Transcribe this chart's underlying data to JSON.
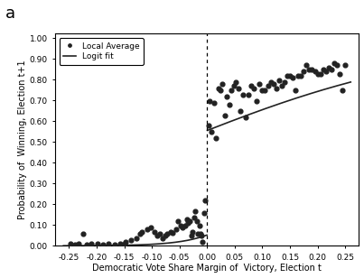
{
  "title_label": "a",
  "xlabel": "Democratic Vote Share Margin of  Victory, Election t",
  "ylabel": "Probability of  Winning, Election t+1",
  "xlim": [
    -0.275,
    0.275
  ],
  "ylim": [
    0.0,
    1.02
  ],
  "yticks": [
    0.0,
    0.1,
    0.2,
    0.3,
    0.4,
    0.5,
    0.6,
    0.7,
    0.8,
    0.9,
    1.0
  ],
  "xticks": [
    -0.25,
    -0.2,
    -0.15,
    -0.1,
    -0.05,
    0.0,
    0.05,
    0.1,
    0.15,
    0.2,
    0.25
  ],
  "vline_x": 0.0,
  "background_color": "#ffffff",
  "scatter_color": "#222222",
  "line_color": "#222222",
  "scatter_size": 12,
  "logit_params_left": {
    "beta0": -2.9,
    "beta1": 20.0
  },
  "logit_params_right": {
    "beta0": 0.22,
    "beta1": 4.2
  },
  "scatter_left_x": [
    -0.248,
    -0.24,
    -0.232,
    -0.218,
    -0.21,
    -0.225,
    -0.198,
    -0.188,
    -0.178,
    -0.168,
    -0.158,
    -0.15,
    -0.148,
    -0.138,
    -0.128,
    -0.122,
    -0.118,
    -0.108,
    -0.102,
    -0.095,
    -0.09,
    -0.086,
    -0.08,
    -0.076,
    -0.072,
    -0.066,
    -0.062,
    -0.056,
    -0.052,
    -0.048,
    -0.044,
    -0.04,
    -0.037,
    -0.034,
    -0.031,
    -0.028,
    -0.026,
    -0.024,
    -0.021,
    -0.019,
    -0.017,
    -0.014,
    -0.012,
    -0.01,
    -0.008,
    -0.005,
    -0.003
  ],
  "scatter_left_y": [
    0.01,
    0.005,
    0.01,
    0.005,
    0.01,
    0.06,
    0.01,
    0.005,
    0.01,
    0.005,
    0.008,
    0.01,
    0.02,
    0.028,
    0.038,
    0.058,
    0.068,
    0.078,
    0.088,
    0.068,
    0.048,
    0.058,
    0.038,
    0.048,
    0.058,
    0.068,
    0.063,
    0.078,
    0.118,
    0.098,
    0.088,
    0.098,
    0.128,
    0.108,
    0.118,
    0.048,
    0.068,
    0.138,
    0.168,
    0.118,
    0.058,
    0.098,
    0.058,
    0.048,
    0.018,
    0.158,
    0.218
  ],
  "scatter_right_x": [
    0.002,
    0.005,
    0.008,
    0.012,
    0.016,
    0.02,
    0.024,
    0.028,
    0.032,
    0.036,
    0.04,
    0.044,
    0.048,
    0.052,
    0.056,
    0.06,
    0.065,
    0.07,
    0.075,
    0.08,
    0.085,
    0.09,
    0.095,
    0.1,
    0.105,
    0.11,
    0.115,
    0.12,
    0.125,
    0.13,
    0.135,
    0.14,
    0.145,
    0.15,
    0.155,
    0.16,
    0.165,
    0.17,
    0.175,
    0.18,
    0.185,
    0.19,
    0.195,
    0.2,
    0.205,
    0.21,
    0.215,
    0.22,
    0.225,
    0.23,
    0.235,
    0.24,
    0.245,
    0.25
  ],
  "scatter_right_y": [
    0.58,
    0.695,
    0.548,
    0.688,
    0.52,
    0.758,
    0.748,
    0.778,
    0.628,
    0.718,
    0.678,
    0.748,
    0.768,
    0.788,
    0.758,
    0.648,
    0.728,
    0.618,
    0.728,
    0.768,
    0.758,
    0.698,
    0.778,
    0.748,
    0.748,
    0.768,
    0.788,
    0.778,
    0.758,
    0.798,
    0.768,
    0.788,
    0.818,
    0.818,
    0.808,
    0.748,
    0.818,
    0.818,
    0.838,
    0.868,
    0.848,
    0.848,
    0.838,
    0.828,
    0.828,
    0.848,
    0.838,
    0.858,
    0.848,
    0.878,
    0.868,
    0.828,
    0.748,
    0.868
  ]
}
